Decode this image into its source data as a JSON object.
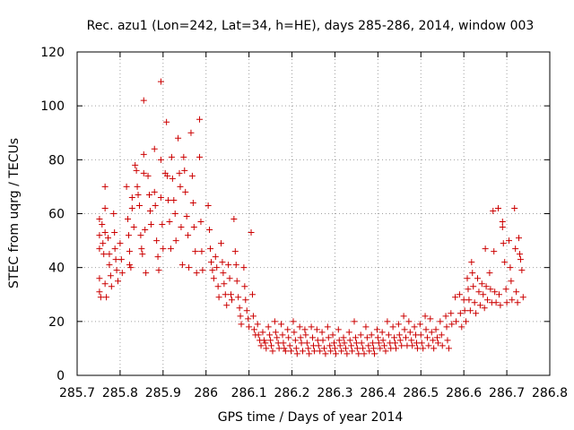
{
  "chart_data": {
    "type": "scatter",
    "title": "Rec. azu1 (Lon=242, Lat=34, h=HE), days 285-286, 2014, window 003",
    "xlabel": "GPS time / Days of year 2014",
    "ylabel": "STEC from uqrg / TECUs",
    "xlim": [
      285.7,
      286.8
    ],
    "ylim": [
      0,
      120
    ],
    "xticks": [
      285.7,
      285.8,
      285.9,
      286.0,
      286.1,
      286.2,
      286.3,
      286.4,
      286.5,
      286.6,
      286.7,
      286.8
    ],
    "xtick_labels": [
      "285.7",
      "285.8",
      "285.9",
      "286",
      "286.1",
      "286.2",
      "286.3",
      "286.4",
      "286.5",
      "286.6",
      "286.7",
      "286.8"
    ],
    "yticks": [
      0,
      20,
      40,
      60,
      80,
      100,
      120
    ],
    "ytick_labels": [
      "0",
      "20",
      "40",
      "60",
      "80",
      "100",
      "120"
    ],
    "grid": true,
    "marker": "plus",
    "color": "#cc0000",
    "points": [
      [
        285.752,
        58
      ],
      [
        285.752,
        52
      ],
      [
        285.752,
        47
      ],
      [
        285.752,
        36
      ],
      [
        285.752,
        31
      ],
      [
        285.755,
        29
      ],
      [
        285.758,
        56
      ],
      [
        285.76,
        49
      ],
      [
        285.762,
        45
      ],
      [
        285.765,
        70
      ],
      [
        285.765,
        62
      ],
      [
        285.765,
        53
      ],
      [
        285.765,
        34
      ],
      [
        285.768,
        29
      ],
      [
        285.772,
        51
      ],
      [
        285.775,
        45
      ],
      [
        285.775,
        41
      ],
      [
        285.778,
        37
      ],
      [
        285.78,
        33
      ],
      [
        285.785,
        60
      ],
      [
        285.787,
        53
      ],
      [
        285.788,
        47
      ],
      [
        285.79,
        43
      ],
      [
        285.792,
        39
      ],
      [
        285.795,
        35
      ],
      [
        285.8,
        49
      ],
      [
        285.803,
        43
      ],
      [
        285.805,
        38
      ],
      [
        285.815,
        70
      ],
      [
        285.818,
        58
      ],
      [
        285.82,
        52
      ],
      [
        285.822,
        46
      ],
      [
        285.822,
        41
      ],
      [
        285.825,
        40
      ],
      [
        285.828,
        66
      ],
      [
        285.828,
        62
      ],
      [
        285.832,
        55
      ],
      [
        285.835,
        78
      ],
      [
        285.838,
        76
      ],
      [
        285.84,
        70
      ],
      [
        285.842,
        67
      ],
      [
        285.845,
        63
      ],
      [
        285.848,
        52
      ],
      [
        285.85,
        47
      ],
      [
        285.852,
        45
      ],
      [
        285.855,
        102
      ],
      [
        285.855,
        82
      ],
      [
        285.855,
        75
      ],
      [
        285.858,
        54
      ],
      [
        285.86,
        38
      ],
      [
        285.865,
        74
      ],
      [
        285.868,
        67
      ],
      [
        285.87,
        61
      ],
      [
        285.872,
        56
      ],
      [
        285.88,
        84
      ],
      [
        285.88,
        68
      ],
      [
        285.882,
        63
      ],
      [
        285.885,
        50
      ],
      [
        285.888,
        44
      ],
      [
        285.89,
        39
      ],
      [
        285.895,
        109
      ],
      [
        285.895,
        80
      ],
      [
        285.895,
        66
      ],
      [
        285.898,
        56
      ],
      [
        285.9,
        47
      ],
      [
        285.905,
        75
      ],
      [
        285.908,
        94
      ],
      [
        285.91,
        74
      ],
      [
        285.912,
        65
      ],
      [
        285.915,
        57
      ],
      [
        285.918,
        47
      ],
      [
        285.92,
        81
      ],
      [
        285.922,
        73
      ],
      [
        285.925,
        65
      ],
      [
        285.928,
        60
      ],
      [
        285.93,
        50
      ],
      [
        285.935,
        88
      ],
      [
        285.938,
        75
      ],
      [
        285.94,
        70
      ],
      [
        285.942,
        55
      ],
      [
        285.945,
        41
      ],
      [
        285.948,
        81
      ],
      [
        285.95,
        76
      ],
      [
        285.952,
        68
      ],
      [
        285.955,
        59
      ],
      [
        285.958,
        52
      ],
      [
        285.96,
        40
      ],
      [
        285.965,
        90
      ],
      [
        285.968,
        74
      ],
      [
        285.97,
        64
      ],
      [
        285.972,
        55
      ],
      [
        285.975,
        46
      ],
      [
        285.978,
        38
      ],
      [
        285.985,
        95
      ],
      [
        285.985,
        81
      ],
      [
        285.988,
        57
      ],
      [
        285.99,
        46
      ],
      [
        285.992,
        39
      ],
      [
        286.005,
        63
      ],
      [
        286.008,
        54
      ],
      [
        286.01,
        47
      ],
      [
        286.012,
        42
      ],
      [
        286.015,
        39
      ],
      [
        286.018,
        36
      ],
      [
        286.022,
        44
      ],
      [
        286.025,
        40
      ],
      [
        286.028,
        33
      ],
      [
        286.03,
        29
      ],
      [
        286.035,
        49
      ],
      [
        286.038,
        42
      ],
      [
        286.04,
        38
      ],
      [
        286.042,
        34
      ],
      [
        286.045,
        30
      ],
      [
        286.048,
        26
      ],
      [
        286.052,
        41
      ],
      [
        286.055,
        36
      ],
      [
        286.058,
        30
      ],
      [
        286.06,
        28
      ],
      [
        286.065,
        58
      ],
      [
        286.068,
        46
      ],
      [
        286.07,
        41
      ],
      [
        286.072,
        35
      ],
      [
        286.075,
        29
      ],
      [
        286.078,
        25
      ],
      [
        286.08,
        22
      ],
      [
        286.082,
        19
      ],
      [
        286.088,
        40
      ],
      [
        286.09,
        33
      ],
      [
        286.092,
        28
      ],
      [
        286.095,
        24
      ],
      [
        286.098,
        21
      ],
      [
        286.1,
        18
      ],
      [
        286.105,
        53
      ],
      [
        286.108,
        30
      ],
      [
        286.11,
        22
      ],
      [
        286.112,
        17
      ],
      [
        286.115,
        15
      ],
      [
        286.12,
        19
      ],
      [
        286.122,
        15
      ],
      [
        286.125,
        13
      ],
      [
        286.128,
        11
      ],
      [
        286.132,
        16
      ],
      [
        286.135,
        13
      ],
      [
        286.138,
        12
      ],
      [
        286.14,
        10
      ],
      [
        286.145,
        18
      ],
      [
        286.148,
        15
      ],
      [
        286.15,
        13
      ],
      [
        286.152,
        11
      ],
      [
        286.155,
        9
      ],
      [
        286.16,
        20
      ],
      [
        286.162,
        16
      ],
      [
        286.165,
        14
      ],
      [
        286.168,
        12
      ],
      [
        286.17,
        10
      ],
      [
        286.175,
        19
      ],
      [
        286.178,
        15
      ],
      [
        286.18,
        12
      ],
      [
        286.182,
        10
      ],
      [
        286.185,
        9
      ],
      [
        286.19,
        17
      ],
      [
        286.192,
        14
      ],
      [
        286.195,
        11
      ],
      [
        286.198,
        9
      ],
      [
        286.203,
        20
      ],
      [
        286.205,
        16
      ],
      [
        286.208,
        13
      ],
      [
        286.21,
        10
      ],
      [
        286.212,
        8
      ],
      [
        286.218,
        18
      ],
      [
        286.22,
        14
      ],
      [
        286.222,
        12
      ],
      [
        286.225,
        9
      ],
      [
        286.23,
        17
      ],
      [
        286.232,
        15
      ],
      [
        286.235,
        12
      ],
      [
        286.238,
        10
      ],
      [
        286.24,
        8
      ],
      [
        286.245,
        18
      ],
      [
        286.248,
        14
      ],
      [
        286.25,
        11
      ],
      [
        286.252,
        9
      ],
      [
        286.258,
        17
      ],
      [
        286.26,
        13
      ],
      [
        286.262,
        11
      ],
      [
        286.265,
        9
      ],
      [
        286.27,
        16
      ],
      [
        286.272,
        13
      ],
      [
        286.275,
        10
      ],
      [
        286.278,
        8
      ],
      [
        286.283,
        18
      ],
      [
        286.285,
        14
      ],
      [
        286.288,
        11
      ],
      [
        286.29,
        9
      ],
      [
        286.295,
        15
      ],
      [
        286.298,
        12
      ],
      [
        286.3,
        10
      ],
      [
        286.302,
        8
      ],
      [
        286.308,
        17
      ],
      [
        286.31,
        13
      ],
      [
        286.312,
        11
      ],
      [
        286.315,
        9
      ],
      [
        286.32,
        14
      ],
      [
        286.322,
        12
      ],
      [
        286.325,
        10
      ],
      [
        286.328,
        8
      ],
      [
        286.333,
        16
      ],
      [
        286.335,
        13
      ],
      [
        286.338,
        11
      ],
      [
        286.34,
        9
      ],
      [
        286.345,
        20
      ],
      [
        286.348,
        14
      ],
      [
        286.35,
        12
      ],
      [
        286.352,
        10
      ],
      [
        286.355,
        8
      ],
      [
        286.36,
        15
      ],
      [
        286.362,
        12
      ],
      [
        286.365,
        10
      ],
      [
        286.368,
        8
      ],
      [
        286.372,
        18
      ],
      [
        286.375,
        14
      ],
      [
        286.378,
        11
      ],
      [
        286.38,
        9
      ],
      [
        286.385,
        15
      ],
      [
        286.388,
        12
      ],
      [
        286.39,
        10
      ],
      [
        286.392,
        8
      ],
      [
        286.398,
        17
      ],
      [
        286.4,
        14
      ],
      [
        286.402,
        12
      ],
      [
        286.405,
        10
      ],
      [
        286.41,
        16
      ],
      [
        286.412,
        13
      ],
      [
        286.415,
        11
      ],
      [
        286.418,
        9
      ],
      [
        286.422,
        20
      ],
      [
        286.425,
        15
      ],
      [
        286.428,
        12
      ],
      [
        286.43,
        10
      ],
      [
        286.435,
        18
      ],
      [
        286.438,
        14
      ],
      [
        286.44,
        12
      ],
      [
        286.442,
        10
      ],
      [
        286.448,
        19
      ],
      [
        286.45,
        15
      ],
      [
        286.452,
        13
      ],
      [
        286.455,
        11
      ],
      [
        286.46,
        22
      ],
      [
        286.462,
        17
      ],
      [
        286.465,
        14
      ],
      [
        286.468,
        11
      ],
      [
        286.472,
        20
      ],
      [
        286.475,
        16
      ],
      [
        286.478,
        13
      ],
      [
        286.48,
        11
      ],
      [
        286.485,
        18
      ],
      [
        286.488,
        15
      ],
      [
        286.49,
        12
      ],
      [
        286.492,
        10
      ],
      [
        286.498,
        19
      ],
      [
        286.5,
        15
      ],
      [
        286.502,
        12
      ],
      [
        286.505,
        10
      ],
      [
        286.51,
        22
      ],
      [
        286.512,
        17
      ],
      [
        286.515,
        14
      ],
      [
        286.518,
        11
      ],
      [
        286.522,
        21
      ],
      [
        286.525,
        16
      ],
      [
        286.528,
        13
      ],
      [
        286.53,
        10
      ],
      [
        286.535,
        17
      ],
      [
        286.538,
        14
      ],
      [
        286.54,
        12
      ],
      [
        286.545,
        20
      ],
      [
        286.548,
        15
      ],
      [
        286.55,
        11
      ],
      [
        286.558,
        22
      ],
      [
        286.56,
        18
      ],
      [
        286.562,
        13
      ],
      [
        286.565,
        10
      ],
      [
        286.57,
        23
      ],
      [
        286.572,
        19
      ],
      [
        286.58,
        29
      ],
      [
        286.582,
        20
      ],
      [
        286.59,
        30
      ],
      [
        286.592,
        23
      ],
      [
        286.595,
        18
      ],
      [
        286.6,
        28
      ],
      [
        286.602,
        24
      ],
      [
        286.605,
        20
      ],
      [
        286.608,
        36
      ],
      [
        286.61,
        32
      ],
      [
        286.612,
        28
      ],
      [
        286.615,
        24
      ],
      [
        286.618,
        42
      ],
      [
        286.62,
        38
      ],
      [
        286.622,
        33
      ],
      [
        286.625,
        27
      ],
      [
        286.628,
        23
      ],
      [
        286.632,
        36
      ],
      [
        286.635,
        31
      ],
      [
        286.638,
        26
      ],
      [
        286.642,
        34
      ],
      [
        286.645,
        30
      ],
      [
        286.648,
        25
      ],
      [
        286.65,
        47
      ],
      [
        286.652,
        33
      ],
      [
        286.655,
        28
      ],
      [
        286.66,
        38
      ],
      [
        286.662,
        32
      ],
      [
        286.665,
        27
      ],
      [
        286.668,
        61
      ],
      [
        286.67,
        46
      ],
      [
        286.672,
        31
      ],
      [
        286.675,
        27
      ],
      [
        286.68,
        62
      ],
      [
        286.682,
        30
      ],
      [
        286.685,
        26
      ],
      [
        286.69,
        57
      ],
      [
        286.69,
        55
      ],
      [
        286.692,
        49
      ],
      [
        286.695,
        42
      ],
      [
        286.698,
        32
      ],
      [
        286.7,
        27
      ],
      [
        286.705,
        50
      ],
      [
        286.708,
        40
      ],
      [
        286.71,
        35
      ],
      [
        286.712,
        28
      ],
      [
        286.718,
        62
      ],
      [
        286.72,
        47
      ],
      [
        286.722,
        31
      ],
      [
        286.725,
        27
      ],
      [
        286.728,
        51
      ],
      [
        286.73,
        45
      ],
      [
        286.732,
        43
      ],
      [
        286.735,
        39
      ],
      [
        286.738,
        29
      ]
    ]
  }
}
